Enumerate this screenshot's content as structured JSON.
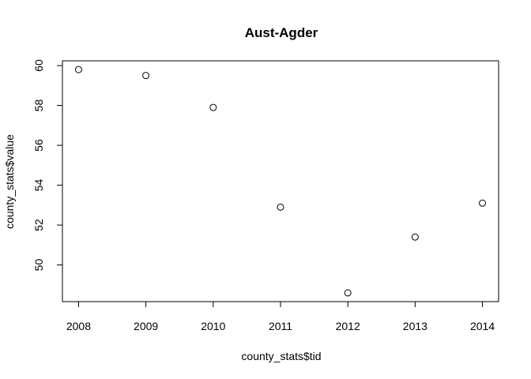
{
  "chart_data": {
    "type": "scatter",
    "title": "Aust-Agder",
    "xlabel": "county_stats$tid",
    "ylabel": "county_stats$value",
    "x": [
      2008,
      2009,
      2010,
      2011,
      2012,
      2013,
      2014
    ],
    "y": [
      59.8,
      59.5,
      57.9,
      52.9,
      48.6,
      51.4,
      53.1
    ],
    "xticks": [
      2008,
      2009,
      2010,
      2011,
      2012,
      2013,
      2014
    ],
    "yticks": [
      50,
      52,
      54,
      56,
      58,
      60
    ],
    "xlim": [
      2007.76,
      2014.24
    ],
    "ylim": [
      48.16,
      60.24
    ],
    "grid": false,
    "legend": "none",
    "marker": "open-circle",
    "colors": {
      "points": "#000000",
      "axes": "#000000",
      "background": "#ffffff"
    }
  }
}
